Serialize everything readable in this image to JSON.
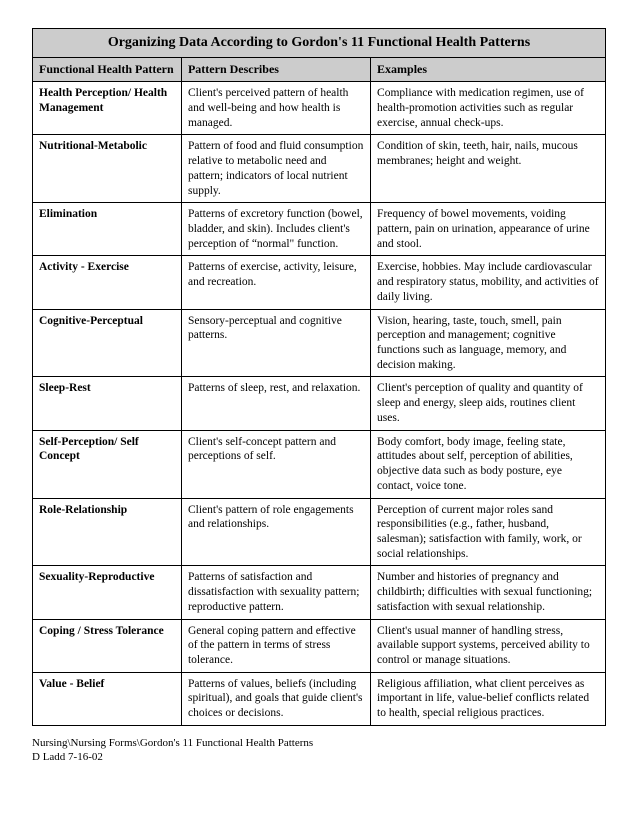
{
  "title": "Organizing Data According to Gordon's 11 Functional Health Patterns",
  "columns": [
    "Functional Health Pattern",
    "Pattern Describes",
    "Examples"
  ],
  "rows": [
    {
      "pattern": "Health Perception/ Health Management",
      "describes": "Client's perceived pattern of health and well-being and how health is managed.",
      "examples": "Compliance with medication regimen, use of health-promotion activities such as regular exercise, annual check-ups."
    },
    {
      "pattern": "Nutritional-Metabolic",
      "describes": "Pattern of food and fluid consumption relative to metabolic need and pattern; indicators of local nutrient supply.",
      "examples": "Condition of skin, teeth, hair, nails, mucous membranes; height and weight."
    },
    {
      "pattern": "Elimination",
      "describes": "Patterns of excretory function (bowel, bladder, and skin). Includes client's perception of “normal\" function.",
      "examples": "Frequency of bowel movements, voiding pattern, pain on urination, appearance of urine and stool."
    },
    {
      "pattern": "Activity - Exercise",
      "describes": "Patterns of exercise, activity, leisure, and recreation.",
      "examples": "Exercise, hobbies. May include cardiovascular and respiratory status, mobility, and activities of daily living."
    },
    {
      "pattern": "Cognitive-Perceptual",
      "describes": "Sensory-perceptual and cognitive patterns.",
      "examples": "Vision, hearing, taste, touch, smell, pain perception and management; cognitive functions such as language, memory, and decision making."
    },
    {
      "pattern": "Sleep-Rest",
      "describes": "Patterns of sleep, rest, and relaxation.",
      "examples": "Client's perception of quality and quantity of sleep and energy, sleep aids, routines client uses."
    },
    {
      "pattern": "Self-Perception/ Self Concept",
      "describes": "Client's self-concept pattern and perceptions of self.",
      "examples": "Body comfort, body image, feeling state, attitudes about self, perception of abilities, objective data such as body posture, eye contact, voice tone."
    },
    {
      "pattern": "Role-Relationship",
      "describes": "Client's pattern of role engagements and relationships.",
      "examples": "Perception of current major roles sand responsibilities (e.g., father, husband, salesman); satisfaction with family, work, or social relationships."
    },
    {
      "pattern": "Sexuality-Reproductive",
      "describes": "Patterns of satisfaction and dissatisfaction with sexuality pattern; reproductive pattern.",
      "examples": "Number and histories of pregnancy and childbirth; difficulties with sexual functioning; satisfaction with sexual relationship."
    },
    {
      "pattern": "Coping / Stress Tolerance",
      "describes": "General coping pattern and effective of the pattern in terms of stress tolerance.",
      "examples": "Client's usual manner of handling stress, available support systems, perceived ability to control or manage situations."
    },
    {
      "pattern": "Value - Belief",
      "describes": "Patterns of values, beliefs (including spiritual), and goals that guide client's choices or decisions.",
      "examples": "Religious affiliation, what client perceives as important in life, value-belief conflicts related to health, special religious practices."
    }
  ],
  "footer_line1": "Nursing\\Nursing Forms\\Gordon's 11 Functional Health Patterns",
  "footer_line2": "D Ladd    7-16-02"
}
